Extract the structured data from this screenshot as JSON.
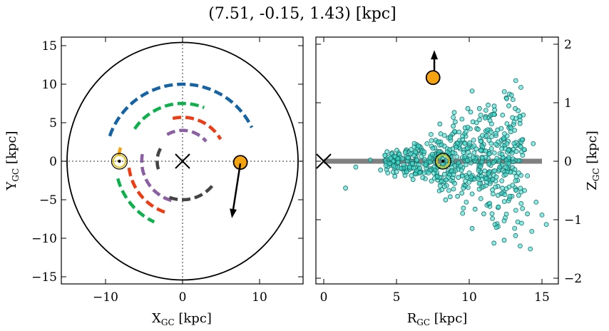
{
  "title": "(7.51, -0.15, 1.43) [kpc]",
  "chart_data": [
    {
      "type": "scatter",
      "panel": "left",
      "xlabel": "X_GC [kpc]",
      "ylabel": "Y_GC [kpc]",
      "xlim": [
        -16,
        16
      ],
      "ylim": [
        -16,
        16
      ],
      "xticks": [
        -10,
        0,
        10
      ],
      "yticks": [
        -15,
        -10,
        -5,
        0,
        5,
        10,
        15
      ],
      "xtick_labels": [
        "−10",
        "0",
        "10"
      ],
      "ytick_labels": [
        "−15",
        "−10",
        "−5",
        "0",
        "5",
        "10",
        "15"
      ],
      "grid": false,
      "guide_lines": {
        "x": 0,
        "y": 0,
        "style": "dotted",
        "color": "#777777"
      },
      "boundary_circle": {
        "cx": 0,
        "cy": 0,
        "r": 15
      },
      "galactic_center": {
        "x": 0,
        "y": 0,
        "marker": "x"
      },
      "sun": {
        "x": -8.2,
        "y": 0,
        "marker": "sun-symbol",
        "color": "#e0c000"
      },
      "object": {
        "x": 7.51,
        "y": -0.15,
        "color": "#f5a30f"
      },
      "velocity_arrow": {
        "from": [
          7.5,
          -0.3
        ],
        "to": [
          6.4,
          -7.4
        ]
      },
      "arcs": [
        {
          "color": "#1463a5",
          "r": 10.0,
          "start_deg": 161,
          "end_deg": 26
        },
        {
          "color": "#0cb14c",
          "r": 7.5,
          "start_deg": 146,
          "end_deg": 68
        },
        {
          "color": "#0cb14c",
          "r": 8.7,
          "start_deg": 195,
          "end_deg": 245
        },
        {
          "color": "#f03a12",
          "r": 5.7,
          "start_deg": 103,
          "end_deg": 30
        },
        {
          "color": "#f03a12",
          "r": 7.0,
          "start_deg": 187,
          "end_deg": 255
        },
        {
          "color": "#8a5fa3",
          "r": 4.0,
          "start_deg": 120,
          "end_deg": 40
        },
        {
          "color": "#8a5fa3",
          "r": 5.3,
          "start_deg": 170,
          "end_deg": 260
        },
        {
          "color": "#444444",
          "r": 3.3,
          "start_deg": 150,
          "end_deg": 205
        },
        {
          "color": "#444444",
          "r": 5.0,
          "start_deg": 250,
          "end_deg": 325
        },
        {
          "color": "#f5a30f",
          "r": 4.3,
          "start_deg": 160,
          "end_deg": 185,
          "center": [
            -4.0,
            0.3
          ]
        }
      ]
    },
    {
      "type": "scatter",
      "panel": "right",
      "xlabel": "R_GC [kpc]",
      "ylabel": "Z_GC [kpc]",
      "xlim": [
        -0.5,
        16
      ],
      "ylim": [
        -2.1,
        2.1
      ],
      "xticks": [
        0,
        5,
        10,
        15
      ],
      "yticks": [
        -2,
        -1,
        0,
        1,
        2
      ],
      "xtick_labels": [
        "0",
        "5",
        "10",
        "15"
      ],
      "ytick_labels": [
        "−2",
        "−1",
        "0",
        "1",
        "2"
      ],
      "grid": false,
      "disk_line": {
        "x0": 0,
        "x1": 15,
        "y": 0,
        "color": "#808080"
      },
      "galactic_center": {
        "x": 0,
        "y": 0,
        "marker": "x"
      },
      "sun": {
        "x": 8.2,
        "y": 0,
        "marker": "sun-symbol",
        "color": "#e0c000"
      },
      "object": {
        "x": 7.51,
        "y": 1.43,
        "color": "#f5a30f"
      },
      "velocity_arrow": {
        "from": [
          7.6,
          1.55
        ],
        "to": [
          7.6,
          1.9
        ]
      },
      "stars": {
        "color": "#40e0d0",
        "edge": "#1a6e68",
        "points": [
          [
            1.5,
            -0.46
          ],
          [
            2.2,
            -0.1
          ],
          [
            3.2,
            0.02
          ],
          [
            3.9,
            -0.15
          ],
          [
            4.2,
            0.1
          ],
          [
            4.5,
            -0.04
          ],
          [
            4.6,
            0.05
          ],
          [
            4.8,
            -0.08
          ],
          [
            4.9,
            0.08
          ],
          [
            5.1,
            -0.02
          ],
          [
            5.2,
            0.12
          ],
          [
            5.3,
            -0.12
          ],
          [
            5.4,
            0.04
          ],
          [
            5.5,
            -0.06
          ],
          [
            5.6,
            0.15
          ],
          [
            5.7,
            -0.18
          ],
          [
            5.8,
            0.06
          ],
          [
            5.9,
            -0.1
          ],
          [
            6.0,
            0.2
          ],
          [
            6.1,
            -0.04
          ],
          [
            6.2,
            0.1
          ],
          [
            6.3,
            -0.22
          ],
          [
            6.4,
            0.02
          ],
          [
            6.5,
            0.26
          ],
          [
            6.6,
            -0.12
          ],
          [
            6.7,
            0.08
          ],
          [
            6.8,
            -0.28
          ],
          [
            6.9,
            0.16
          ],
          [
            7.0,
            -0.06
          ],
          [
            7.1,
            0.3
          ],
          [
            7.2,
            -0.2
          ],
          [
            7.3,
            0.06
          ],
          [
            7.4,
            -0.34
          ],
          [
            7.5,
            0.22
          ],
          [
            7.6,
            -0.1
          ],
          [
            7.7,
            0.36
          ],
          [
            7.8,
            -0.26
          ],
          [
            7.9,
            0.12
          ],
          [
            8.0,
            -0.42
          ],
          [
            8.1,
            0.28
          ],
          [
            8.2,
            -0.04
          ],
          [
            8.3,
            0.44
          ],
          [
            8.4,
            -0.32
          ],
          [
            8.5,
            0.16
          ],
          [
            8.6,
            -0.5
          ],
          [
            8.7,
            0.4
          ],
          [
            8.8,
            -0.16
          ],
          [
            8.9,
            0.6
          ],
          [
            9.0,
            -0.38
          ],
          [
            9.1,
            0.24
          ],
          [
            9.2,
            -0.6
          ],
          [
            9.3,
            0.5
          ],
          [
            9.4,
            -0.08
          ],
          [
            9.5,
            0.72
          ],
          [
            9.6,
            -0.46
          ],
          [
            9.7,
            0.3
          ],
          [
            9.8,
            -0.7
          ],
          [
            9.9,
            0.58
          ],
          [
            10.0,
            -0.2
          ],
          [
            10.1,
            0.84
          ],
          [
            10.2,
            -0.56
          ],
          [
            10.3,
            0.36
          ],
          [
            10.4,
            -0.82
          ],
          [
            10.5,
            0.66
          ],
          [
            10.6,
            -0.3
          ],
          [
            10.7,
            0.9
          ],
          [
            10.8,
            -0.64
          ],
          [
            10.9,
            0.44
          ],
          [
            11.0,
            -0.9
          ],
          [
            11.1,
            0.74
          ],
          [
            11.2,
            -0.36
          ],
          [
            11.3,
            0.96
          ],
          [
            11.4,
            -0.72
          ],
          [
            11.5,
            0.5
          ],
          [
            11.6,
            -0.98
          ],
          [
            11.7,
            0.8
          ],
          [
            11.8,
            -0.44
          ],
          [
            12.0,
            -0.78
          ],
          [
            12.2,
            0.56
          ],
          [
            12.4,
            -1.02
          ],
          [
            12.6,
            0.3
          ],
          [
            12.8,
            -0.6
          ],
          [
            13.0,
            0.04
          ],
          [
            13.2,
            -0.84
          ],
          [
            13.4,
            -0.2
          ],
          [
            13.6,
            -1.06
          ],
          [
            13.8,
            -0.5
          ],
          [
            14.0,
            -0.9
          ],
          [
            14.3,
            -1.2
          ],
          [
            14.6,
            -0.7
          ],
          [
            15.0,
            -0.92
          ],
          [
            15.3,
            -1.08
          ],
          [
            10.2,
            1.2
          ],
          [
            12.9,
            1.13
          ],
          [
            9.9,
            0.9
          ],
          [
            8.9,
            0.75
          ],
          [
            14.2,
            -1.5
          ],
          [
            13.5,
            -1.45
          ],
          [
            10.2,
            -1.15
          ],
          [
            11.7,
            -1.4
          ],
          [
            12.4,
            -1.35
          ],
          [
            14.0,
            -0.25
          ],
          [
            14.4,
            0.3
          ],
          [
            6.3,
            0.16
          ],
          [
            5.0,
            -0.18
          ],
          [
            4.4,
            -0.2
          ],
          [
            7.9,
            0.33
          ],
          [
            11.9,
            0.05
          ],
          [
            9.6,
            0.15
          ],
          [
            10.9,
            0.05
          ],
          [
            8.7,
            -0.05
          ],
          [
            12.1,
            -0.1
          ]
        ]
      }
    }
  ]
}
